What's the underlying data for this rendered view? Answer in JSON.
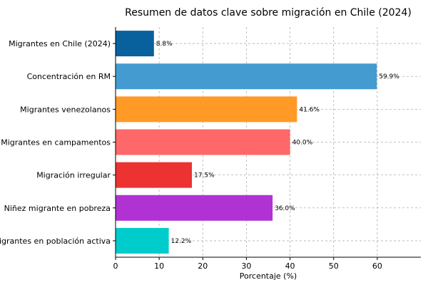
{
  "chart_data": {
    "type": "bar",
    "orientation": "horizontal",
    "title": "Resumen de datos clave sobre migración en Chile (2024)",
    "xlabel": "Porcentaje (%)",
    "ylabel": "",
    "xlim": [
      0,
      70
    ],
    "xticks": [
      "0",
      "10",
      "20",
      "30",
      "40",
      "50",
      "60"
    ],
    "grid": true,
    "categories": [
      "Migrantes en Chile (2024)",
      "Concentración en RM",
      "Migrantes venezolanos",
      "Migrantes en campamentos",
      "Migración irregular",
      "Niñez migrante en pobreza",
      "Migrantes en población activa"
    ],
    "values": [
      8.8,
      59.9,
      41.6,
      40.0,
      17.5,
      36.0,
      12.2
    ],
    "value_labels": [
      "8.8%",
      "59.9%",
      "41.6%",
      "40.0%",
      "17.5%",
      "36.0%",
      "12.2%"
    ],
    "colors": [
      "#08619c",
      "#449bd0",
      "#ff9a26",
      "#ff6868",
      "#ed3232",
      "#b132d2",
      "#00cccc"
    ]
  }
}
